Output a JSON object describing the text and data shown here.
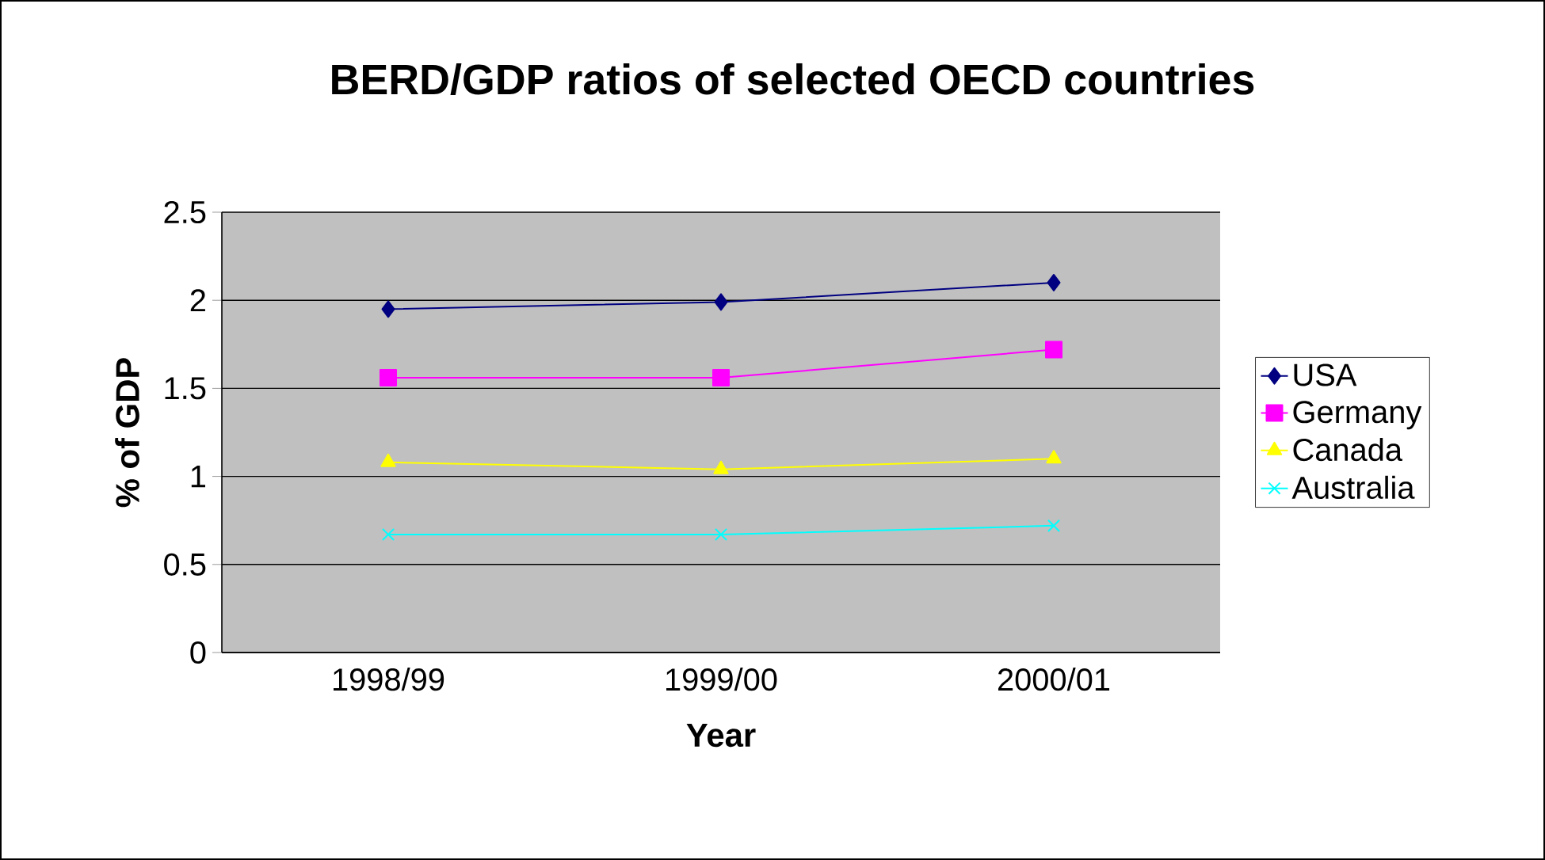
{
  "chart_data": {
    "type": "line",
    "title": "BERD/GDP ratios of selected OECD countries",
    "xlabel": "Year",
    "ylabel": "% of GDP",
    "categories": [
      "1998/99",
      "1999/00",
      "2000/01"
    ],
    "series": [
      {
        "name": "USA",
        "color": "#000080",
        "marker": "diamond",
        "values": [
          1.95,
          1.99,
          2.1
        ]
      },
      {
        "name": "Germany",
        "color": "#ff00ff",
        "marker": "square",
        "values": [
          1.56,
          1.56,
          1.72
        ]
      },
      {
        "name": "Canada",
        "color": "#ffff00",
        "marker": "triangle",
        "values": [
          1.08,
          1.04,
          1.1
        ]
      },
      {
        "name": "Australia",
        "color": "#00ffff",
        "marker": "cross",
        "values": [
          0.67,
          0.67,
          0.72
        ]
      }
    ],
    "ylim": [
      0,
      2.5
    ],
    "yticks": [
      0,
      0.5,
      1,
      1.5,
      2,
      2.5
    ],
    "grid": "y",
    "legend": "right",
    "line_style": "solid"
  }
}
